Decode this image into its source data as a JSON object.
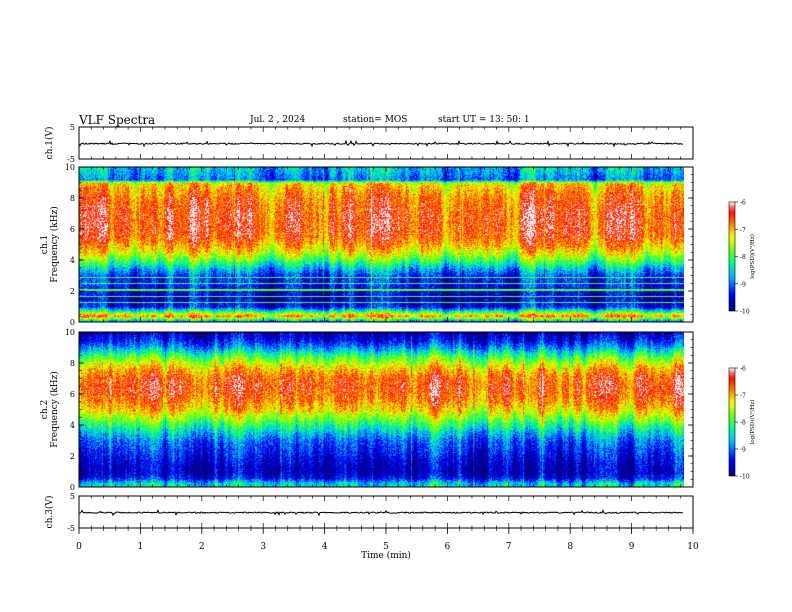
{
  "header": {
    "title": "VLF Spectra",
    "date": "Jul. 2 , 2024",
    "station": "station= MOS",
    "start": "start UT = 13: 50: 1"
  },
  "colors": {
    "spectrogram_scale": [
      "#000080",
      "#0000ff",
      "#00c0ff",
      "#00ff80",
      "#80ff00",
      "#ffff00",
      "#ff8000",
      "#ff0000",
      "#ffffff"
    ],
    "trace": "#000000"
  },
  "chart_data": [
    {
      "type": "line",
      "panel": "ch1-waveform",
      "ylabel": "ch.1(V)",
      "ylim": [
        -5,
        5
      ],
      "yticks": [
        "5",
        "-5"
      ],
      "xlim": [
        0,
        10
      ],
      "series_level": -0.2
    },
    {
      "type": "heatmap",
      "panel": "ch1-spectrogram",
      "ylabel": [
        "ch.1",
        "Frequency (kHz)"
      ],
      "ylim": [
        0,
        10
      ],
      "yticks": [
        "0",
        "2",
        "4",
        "6",
        "8",
        "10"
      ],
      "xlim": [
        0,
        9.85
      ],
      "colorbar": {
        "label": "log(PSD)(V²/Hz)",
        "ticks": [
          "-6",
          "-7",
          "-8",
          "-9",
          "-10"
        ],
        "range": [
          -10,
          -6
        ]
      },
      "profile_freq_khz": [
        0,
        0.4,
        0.6,
        1,
        1.5,
        2,
        2.5,
        3,
        3.5,
        4,
        4.5,
        5,
        5.5,
        6,
        6.5,
        7,
        7.5,
        8,
        8.5,
        9,
        9.2,
        9.5,
        10
      ],
      "profile_logpsd": [
        -9.2,
        -6.8,
        -7.6,
        -9.4,
        -9.6,
        -9.5,
        -9.3,
        -9.2,
        -8.6,
        -7.9,
        -7.3,
        -6.9,
        -6.6,
        -6.5,
        -6.5,
        -6.5,
        -6.6,
        -6.7,
        -6.9,
        -7.2,
        -9.0,
        -8.8,
        -8.6
      ]
    },
    {
      "type": "heatmap",
      "panel": "ch2-spectrogram",
      "ylabel": [
        "ch.2",
        "Frequency (kHz)"
      ],
      "ylim": [
        0,
        10
      ],
      "yticks": [
        "0",
        "2",
        "4",
        "6",
        "8",
        "10"
      ],
      "xlim": [
        0,
        9.85
      ],
      "colorbar": {
        "label": "log(PSD)(V²/Hz)",
        "ticks": [
          "-6",
          "-7",
          "-8",
          "-9",
          "-10"
        ],
        "range": [
          -10,
          -6
        ]
      },
      "profile_freq_khz": [
        0,
        0.3,
        0.6,
        1,
        1.5,
        2,
        2.5,
        3,
        3.5,
        4,
        4.5,
        5,
        5.5,
        6,
        6.5,
        7,
        7.5,
        8,
        8.5,
        9,
        9.5,
        10
      ],
      "profile_logpsd": [
        -8.3,
        -8.6,
        -9.4,
        -9.7,
        -9.6,
        -9.4,
        -9.2,
        -9.0,
        -8.6,
        -8.1,
        -7.6,
        -7.1,
        -6.8,
        -6.6,
        -6.5,
        -6.6,
        -6.9,
        -7.4,
        -8.0,
        -8.8,
        -9.4,
        -9.7
      ]
    },
    {
      "type": "line",
      "panel": "ch3-waveform",
      "ylabel": "ch.3(V)",
      "ylim": [
        -5,
        5
      ],
      "yticks": [
        "5",
        "-5"
      ],
      "xlim": [
        0,
        10
      ],
      "series_level": -0.2,
      "xlabel": "Time (min)",
      "xticks": [
        "0",
        "1",
        "2",
        "3",
        "4",
        "5",
        "6",
        "7",
        "8",
        "9",
        "10"
      ]
    }
  ]
}
